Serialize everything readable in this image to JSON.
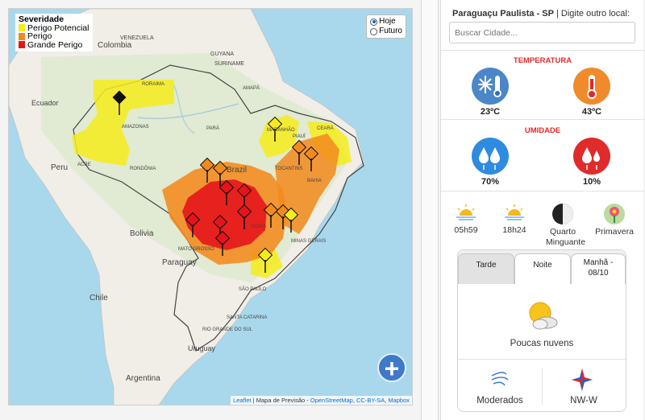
{
  "map": {
    "legend": {
      "title": "Severidade",
      "items": [
        {
          "label": "Perigo Potencial",
          "color": "#f6ec1c"
        },
        {
          "label": "Perigo",
          "color": "#f28a1d"
        },
        {
          "label": "Grande Perigo",
          "color": "#e5141b"
        }
      ]
    },
    "toggle": {
      "options": [
        "Hoje",
        "Futuro"
      ],
      "selected": "Hoje"
    },
    "zoom_label": "+",
    "attribution": {
      "leaflet": "Leaflet",
      "sep1": " | Mapa de Previsão - ",
      "osm": "OpenStreetMap",
      "sep2": ", ",
      "license": "CC-BY-SA",
      "sep3": ", ",
      "mapbox": "Mapbox"
    },
    "labels": {
      "colombia": "Colombia",
      "venezuela": "VENEZUELA",
      "guyana": "GUYANA",
      "suriname": "SURINAME",
      "ecuador": "Ecuador",
      "peru": "Peru",
      "bolivia": "Bolivia",
      "brazil": "Brazil",
      "paraguay": "Paraguay",
      "chile": "Chile",
      "argentina": "Argentina",
      "uruguay": "Uruguay",
      "amazonas": "AMAZONAS",
      "roraima": "RORAIMA",
      "amapa": "AMAPÁ",
      "para": "PARÁ",
      "maranhao": "MARANHÃO",
      "piaui": "PIAUÍ",
      "ceara": "CEARÁ",
      "bahia": "BAHIA",
      "acre": "ACRE",
      "rondonia": "RONDÔNIA",
      "mato_grosso": "MATO GROSSO",
      "minas": "MINAS GERAIS",
      "sao_paulo": "SÃO PAULO",
      "rio_grande": "RIO GRANDE DO SUL",
      "santa_catarina": "SANTA CATARINA",
      "goias": "GOIÁS",
      "tocantins": "TOCANTINS"
    }
  },
  "side": {
    "city": "Paraguaçu Paulista - SP",
    "city_hint": " | Digite outro local:",
    "search_placeholder": "Buscar Cidade...",
    "temperature": {
      "title": "TEMPERATURA",
      "min": "23ºC",
      "max": "43ºC",
      "min_icon": "cold-thermometer-icon",
      "max_icon": "hot-thermometer-icon"
    },
    "humidity": {
      "title": "UMIDADE",
      "max": "70%",
      "min": "10%",
      "max_icon": "high-humidity-icon",
      "min_icon": "low-humidity-icon"
    },
    "astro": {
      "sunrise": "05h59",
      "sunset": "18h24",
      "moon": "Quarto",
      "moon_line2": "Minguante",
      "season": "Primavera"
    },
    "tabs": [
      {
        "label": "Tarde",
        "active": true
      },
      {
        "label": "Noite",
        "active": false
      },
      {
        "label": "Manhã - 08/10",
        "active": false
      }
    ],
    "tab3_line1": "Manhã -",
    "tab3_line2": "08/10",
    "forecast": "Poucas nuvens",
    "wind_speed": "Moderados",
    "wind_dir": "NW-W"
  }
}
